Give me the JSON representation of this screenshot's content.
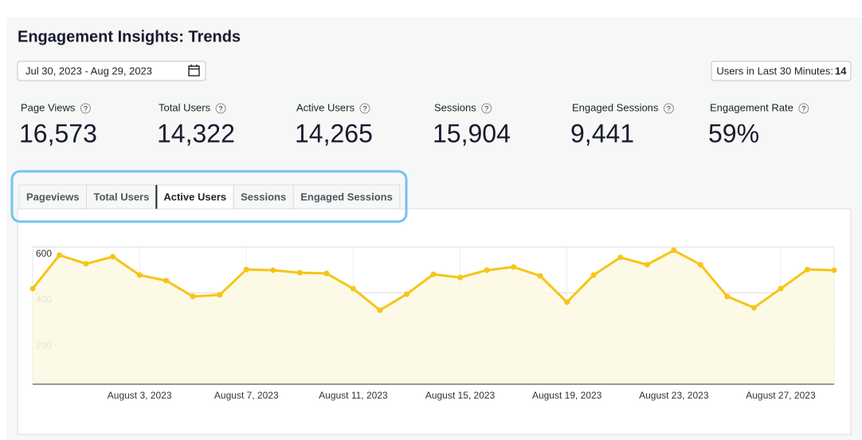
{
  "header": {
    "title": "Engagement Insights: Trends",
    "date_range": "Jul 30, 2023 - Aug 29, 2023",
    "realtime_label": "Users in Last 30 Minutes:",
    "realtime_value": "14"
  },
  "stats": [
    {
      "label": "Page Views",
      "value": "16,573"
    },
    {
      "label": "Total Users",
      "value": "14,322"
    },
    {
      "label": "Active Users",
      "value": "14,265"
    },
    {
      "label": "Sessions",
      "value": "15,904"
    },
    {
      "label": "Engaged Sessions",
      "value": "9,441"
    },
    {
      "label": "Engagement Rate",
      "value": "59%"
    }
  ],
  "tabs": [
    "Pageviews",
    "Total Users",
    "Active Users",
    "Sessions",
    "Engaged Sessions"
  ],
  "active_tab": 2,
  "chart_data": {
    "type": "area",
    "categories": [
      null,
      null,
      null,
      null,
      "August 3, 2023",
      null,
      null,
      null,
      "August 7, 2023",
      null,
      null,
      null,
      "August 11, 2023",
      null,
      null,
      null,
      "August 15, 2023",
      null,
      null,
      null,
      "August 19, 2023",
      null,
      null,
      null,
      "August 23, 2023",
      null,
      null,
      null,
      "August 27, 2023",
      null,
      null
    ],
    "values": [
      418,
      565,
      527,
      558,
      478,
      453,
      384,
      391,
      502,
      499,
      488,
      485,
      418,
      324,
      394,
      481,
      467,
      499,
      513,
      474,
      359,
      478,
      555,
      523,
      586,
      523,
      384,
      335,
      418,
      502,
      499
    ],
    "color": "#f5c518",
    "fill": "#fcf8e3",
    "ylim": [
      0,
      600
    ],
    "yticks": [
      200,
      400,
      600
    ],
    "grid": true
  }
}
